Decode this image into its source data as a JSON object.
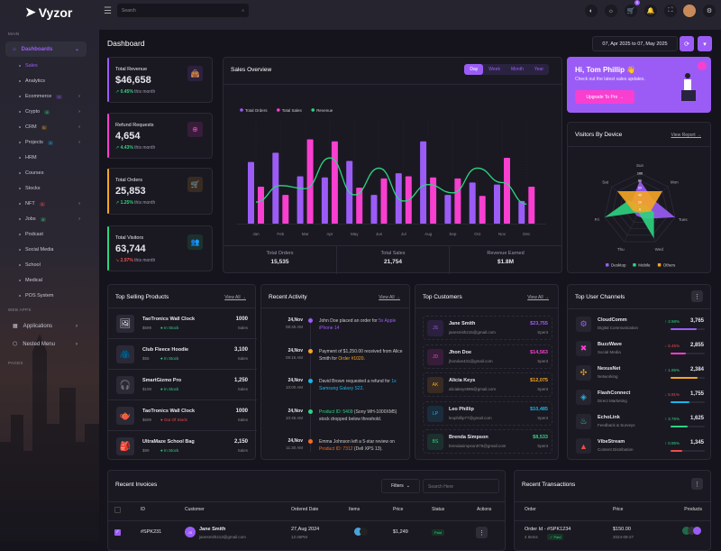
{
  "brand": {
    "name": "Vyzor"
  },
  "topbar": {
    "search_placeholder": "Search",
    "cart_count": "5",
    "icons": [
      "language-icon",
      "theme-icon",
      "cart-icon",
      "bell-icon",
      "fullscreen-icon",
      "avatar",
      "settings-icon"
    ]
  },
  "sidebar": {
    "section_main": "MAIN",
    "section_webapps": "WEB APPS",
    "section_pages": "PAGES",
    "dashboards": "Dashboards",
    "items": [
      {
        "label": "Sales",
        "active": true
      },
      {
        "label": "Analytics"
      },
      {
        "label": "Ecommerce",
        "badge": "9",
        "badge_color": "#9b5cf6",
        "arrow": true
      },
      {
        "label": "Crypto",
        "badge": "6",
        "badge_color": "#2dd47f",
        "arrow": true
      },
      {
        "label": "CRM",
        "badge": "5",
        "badge_color": "#f5a623",
        "arrow": true
      },
      {
        "label": "Projects",
        "badge": "4",
        "badge_color": "#19b6e8",
        "arrow": true
      },
      {
        "label": "HRM"
      },
      {
        "label": "Courses"
      },
      {
        "label": "Stocks"
      },
      {
        "label": "NFT",
        "badge": "6",
        "badge_color": "#f04b4b",
        "arrow": true
      },
      {
        "label": "Jobs",
        "badge": "8",
        "badge_color": "#2dd47f",
        "arrow": true
      },
      {
        "label": "Podcast"
      },
      {
        "label": "Social Media"
      },
      {
        "label": "School"
      },
      {
        "label": "Medical"
      },
      {
        "label": "POS System"
      }
    ],
    "apps": [
      {
        "label": "Applications"
      },
      {
        "label": "Nested Menu"
      }
    ]
  },
  "page": {
    "title": "Dashboard",
    "date_range": "07, Apr 2025 to 07, May 2025"
  },
  "stats": [
    {
      "label": "Total Revenue",
      "value": "$46,658",
      "change": "0.45%",
      "trend": "up",
      "suffix": "this month",
      "color": "#9b5cf6",
      "icon": "shopping-bag-icon"
    },
    {
      "label": "Refund Requests",
      "value": "4,654",
      "change": "4.43%",
      "trend": "up",
      "suffix": "this month",
      "color": "#f83fd0",
      "icon": "refund-icon"
    },
    {
      "label": "Total Orders",
      "value": "25,853",
      "change": "1.25%",
      "trend": "up",
      "suffix": "this month",
      "color": "#f5a623",
      "icon": "cart-icon"
    },
    {
      "label": "Total Visitors",
      "value": "63,744",
      "change": "2.97%",
      "trend": "down",
      "suffix": "this month",
      "color": "#2dd47f",
      "icon": "users-icon"
    }
  ],
  "sales_overview": {
    "title": "Sales Overview",
    "tabs": [
      "Day",
      "Week",
      "Month",
      "Year"
    ],
    "active_tab": "Day",
    "summary": [
      {
        "label": "Total Orders",
        "value": "15,535"
      },
      {
        "label": "Total Sales",
        "value": "21,754"
      },
      {
        "label": "Revenue Earned",
        "value": "$1.8M"
      }
    ]
  },
  "chart_data": [
    {
      "type": "bar",
      "categories": [
        "Jan",
        "Feb",
        "Mar",
        "Apr",
        "May",
        "Jun",
        "Jul",
        "Aug",
        "Sep",
        "Oct",
        "Nov",
        "Dec"
      ],
      "series": [
        {
          "name": "Total Orders",
          "kind": "bar",
          "color": "#9b5cf6",
          "values": [
            60,
            69,
            46,
            45,
            61,
            28,
            49,
            80,
            28,
            40,
            38,
            22
          ]
        },
        {
          "name": "Total Sales",
          "kind": "bar",
          "color": "#f83fd0",
          "values": [
            36,
            28,
            82,
            80,
            35,
            44,
            46,
            45,
            44,
            27,
            64,
            36
          ]
        },
        {
          "name": "Revenue",
          "kind": "line",
          "color": "#2dd47f",
          "values": [
            21,
            37,
            34,
            64,
            28,
            54,
            22,
            38,
            30,
            54,
            40,
            19
          ]
        }
      ],
      "ylim": [
        0,
        100
      ],
      "legend": "top-left",
      "grid": "vertical-dashed"
    },
    {
      "type": "radar",
      "title": "Visitors By Device",
      "categories": [
        "Sun",
        "Mon",
        "Tues",
        "Wed",
        "Thu",
        "Fri",
        "Sat"
      ],
      "ticks": [
        0,
        20,
        40,
        60,
        80,
        100
      ],
      "series": [
        {
          "name": "Desktop",
          "color": "#9b5cf6",
          "values": [
            80,
            45,
            100,
            30,
            20,
            20,
            30
          ]
        },
        {
          "name": "Mobile",
          "color": "#2dd47f",
          "values": [
            10,
            20,
            40,
            90,
            10,
            100,
            40
          ]
        },
        {
          "name": "Others",
          "color": "#f5a623",
          "values": [
            50,
            80,
            30,
            10,
            10,
            20,
            80
          ]
        }
      ],
      "legend": "bottom"
    }
  ],
  "promo": {
    "greeting": "Hi, Tom Phillip 👋",
    "text": "Check out the latest sales updates.",
    "button": "Upgrade To Pro →"
  },
  "visitors": {
    "title": "Visitors By Device",
    "link": "View Report →"
  },
  "products": {
    "title": "Top Selling Products",
    "link": "View All →",
    "items": [
      {
        "name": "TaoTronics Wall Clock",
        "price": "$699",
        "status": "In Stock",
        "sales": "1000",
        "sales_label": "Sales",
        "icon": "🖼"
      },
      {
        "name": "Club Fleece Hoodie",
        "price": "$55",
        "status": "In Stock",
        "sales": "3,100",
        "sales_label": "Sales",
        "icon": "🧥"
      },
      {
        "name": "SmartGizmo Pro",
        "price": "$199",
        "status": "In Stock",
        "sales": "1,250",
        "sales_label": "Sales",
        "icon": "🎧"
      },
      {
        "name": "TaoTronics Wall Clock",
        "price": "$699",
        "status": "Out Of Stock",
        "sales": "1000",
        "sales_label": "Sales",
        "icon": "🫖"
      },
      {
        "name": "UltraMaze School Bag",
        "price": "$99",
        "status": "In Stock",
        "sales": "2,150",
        "sales_label": "Sales",
        "icon": "🎒"
      }
    ]
  },
  "activity": {
    "title": "Recent Activity",
    "link": "View All →",
    "items": [
      {
        "date": "24,Nov",
        "time": "08:45 AM",
        "color": "#9b5cf6",
        "pre": "John Doe placed an order for ",
        "hl": "5x Apple iPhone 14",
        "post": ""
      },
      {
        "date": "24,Nov",
        "time": "09:15 AM",
        "color": "#f5a623",
        "pre": "Payment of $1,250.00 received from Alice Smith for ",
        "hl": "Order #1020",
        "post": "."
      },
      {
        "date": "24,Nov",
        "time": "10:00 AM",
        "color": "#19b6e8",
        "pre": "David Brown requested a refund for ",
        "hl": "1x Samsung Galaxy S22",
        "post": "."
      },
      {
        "date": "24,Nov",
        "time": "10:45 AM",
        "color": "#2dd47f",
        "pre": "",
        "hl": "Product ID: 5409",
        "post": " (Sony WH-1000XM5) stock dropped below threshold."
      },
      {
        "date": "24,Nov",
        "time": "11:30 AM",
        "color": "#f76b1c",
        "pre": "Emma Johnson left a 5-star review on ",
        "hl": "Product ID: 7312",
        "post": " (Dell XPS 13)."
      }
    ]
  },
  "customers": {
    "title": "Top Customers",
    "link": "View All →",
    "items": [
      {
        "initials": "JS",
        "name": "Jane Smith",
        "email": "janesmith215@gmail.com",
        "amount": "$23,755",
        "label": "Spent",
        "color": "#9b5cf6"
      },
      {
        "initials": "JD",
        "name": "Jhon Doe",
        "email": "jhondoe431@gmail.com",
        "amount": "$14,563",
        "label": "Spent",
        "color": "#f83fd0"
      },
      {
        "initials": "AK",
        "name": "Alicia Keys",
        "email": "aliciakeys996@gmail.com",
        "amount": "$12,075",
        "label": "Spent",
        "color": "#f5a623"
      },
      {
        "initials": "LP",
        "name": "Leo Phillip",
        "email": "leophillip77@gmail.com",
        "amount": "$10,485",
        "label": "Spent",
        "color": "#19b6e8"
      },
      {
        "initials": "BS",
        "name": "Brenda Simpson",
        "email": "brendasimpson075@gmail.com",
        "amount": "$8,533",
        "label": "Spent",
        "color": "#2dd47f"
      }
    ]
  },
  "channels": {
    "title": "Top User Channels",
    "items": [
      {
        "name": "CloudComm",
        "sub": "Digital Communication",
        "change": "2.98%",
        "trend": "up",
        "value": "3,765",
        "progress": 0.75,
        "color": "#9b5cf6",
        "icon": "⚙"
      },
      {
        "name": "BuzzWave",
        "sub": "Social Media",
        "change": "6.45%",
        "trend": "down",
        "value": "2,855",
        "progress": 0.45,
        "color": "#f83fd0",
        "icon": "✖"
      },
      {
        "name": "NexusNet",
        "sub": "Networking",
        "change": "1.95%",
        "trend": "up",
        "value": "2,384",
        "progress": 0.8,
        "color": "#f5a623",
        "icon": "✣"
      },
      {
        "name": "FlashConnect",
        "sub": "Direct Marketing",
        "change": "5.91%",
        "trend": "down",
        "value": "1,755",
        "progress": 0.55,
        "color": "#19b6e8",
        "icon": "◈"
      },
      {
        "name": "EchoLink",
        "sub": "Feedback & Surveys",
        "change": "3.75%",
        "trend": "up",
        "value": "1,625",
        "progress": 0.5,
        "color": "#2dd47f",
        "icon": "♨"
      },
      {
        "name": "VibeStream",
        "sub": "Content Distribution",
        "change": "0.95%",
        "trend": "up",
        "value": "1,345",
        "progress": 0.35,
        "color": "#f04b4b",
        "icon": "▲"
      }
    ]
  },
  "invoices": {
    "title": "Recent Invoices",
    "filters": "Filters",
    "search_placeholder": "Search Here",
    "columns": [
      "ID",
      "Customer",
      "Ordered Date",
      "Items",
      "Price",
      "Status",
      "Actions"
    ],
    "rows": [
      {
        "id": "#SPK231",
        "initials": "JS",
        "name": "Jane Smith",
        "email": "janesmith213@gmail.com",
        "date": "27,Aug 2024",
        "time": "12:45PM",
        "price": "$1,249",
        "status": "Paid",
        "checked": true
      }
    ]
  },
  "transactions": {
    "title": "Recent Transactions",
    "columns": [
      "Order",
      "Price",
      "Products"
    ],
    "rows": [
      {
        "order": "Order Id - #SPK1234",
        "items": "4 Items",
        "status": "✓ Paid",
        "price": "$150.00",
        "date": "2024-08-27"
      }
    ]
  }
}
